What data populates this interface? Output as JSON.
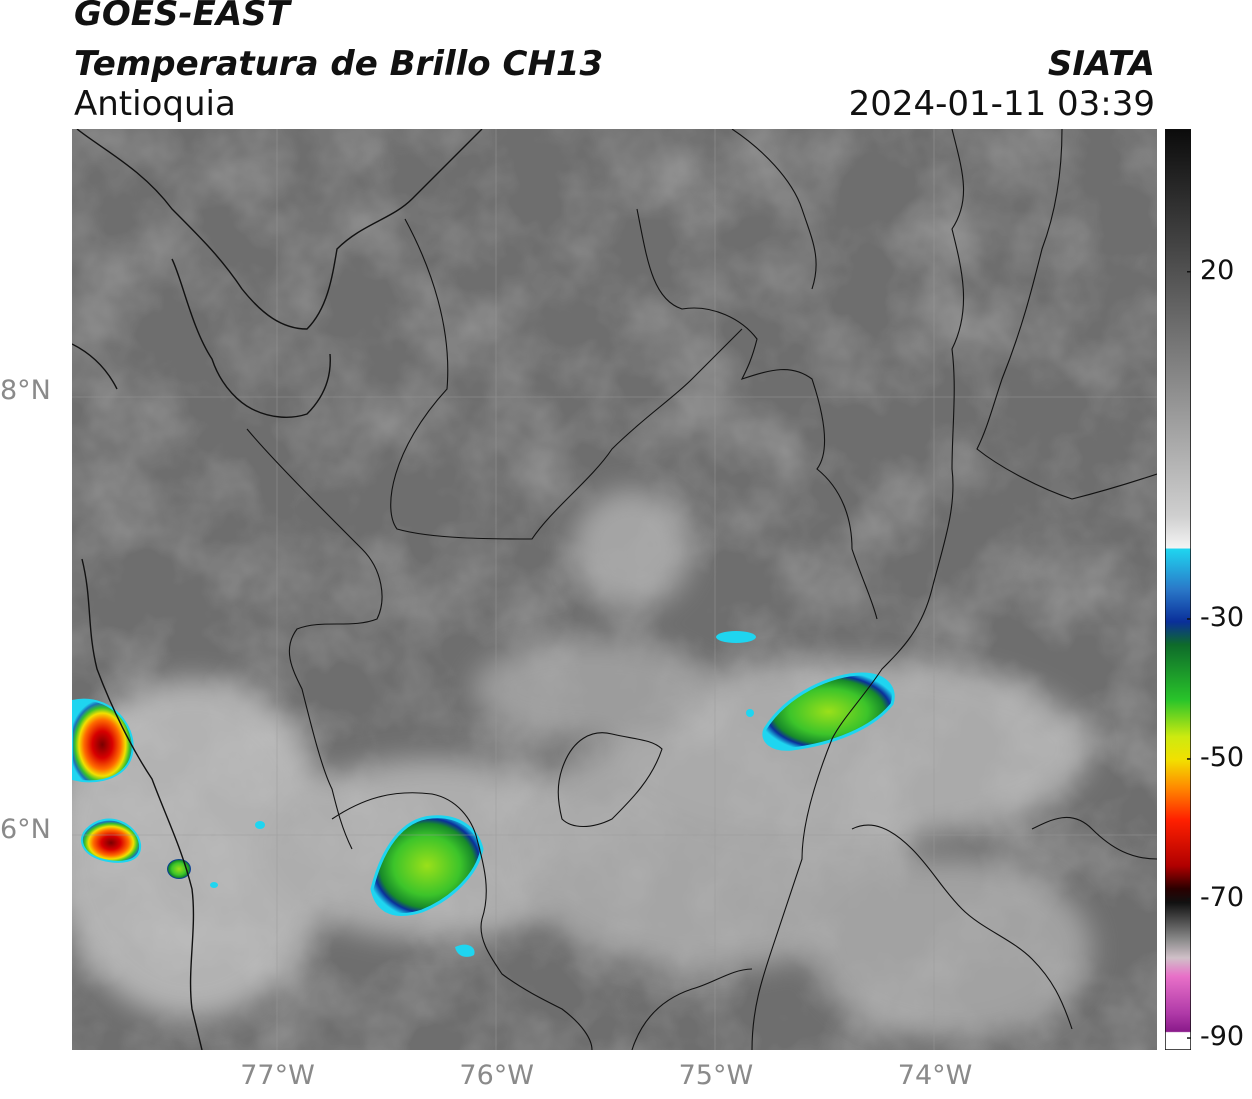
{
  "header": {
    "satellite": "GOES-EAST",
    "product": "Temperatura de Brillo CH13",
    "region": "Antioquia",
    "organization": "SIATA",
    "datetime": "2024-01-11 03:39"
  },
  "map": {
    "lat_ticks": [
      {
        "value": 8,
        "label": "8°N"
      },
      {
        "value": 6,
        "label": "6°N"
      }
    ],
    "lon_ticks": [
      {
        "value": -77,
        "label": "77°W"
      },
      {
        "value": -76,
        "label": "76°W"
      },
      {
        "value": -75,
        "label": "75°W"
      },
      {
        "value": -74,
        "label": "74°W"
      }
    ],
    "extent": {
      "lon_min": -77.95,
      "lon_max": -73.0,
      "lat_min": 5.0,
      "lat_max": 9.2
    }
  },
  "colorbar": {
    "ticks": [
      {
        "value": 20,
        "label": "20"
      },
      {
        "value": -30,
        "label": "-30"
      },
      {
        "value": -50,
        "label": "-50"
      },
      {
        "value": -70,
        "label": "-70"
      },
      {
        "value": -90,
        "label": "-90"
      }
    ],
    "colors": {
      "warm": "#0b0b0b",
      "gray": "#9a9a9a",
      "white": "#f4f4f4",
      "cyan": "#1fd5f0",
      "blue": "#0a2f9a",
      "green": "#29c42a",
      "yellow": "#e8e000",
      "orange": "#ff8a00",
      "red": "#e00000",
      "darkred": "#550000",
      "pink": "#e060c0",
      "purple": "#9a1a9a"
    }
  }
}
